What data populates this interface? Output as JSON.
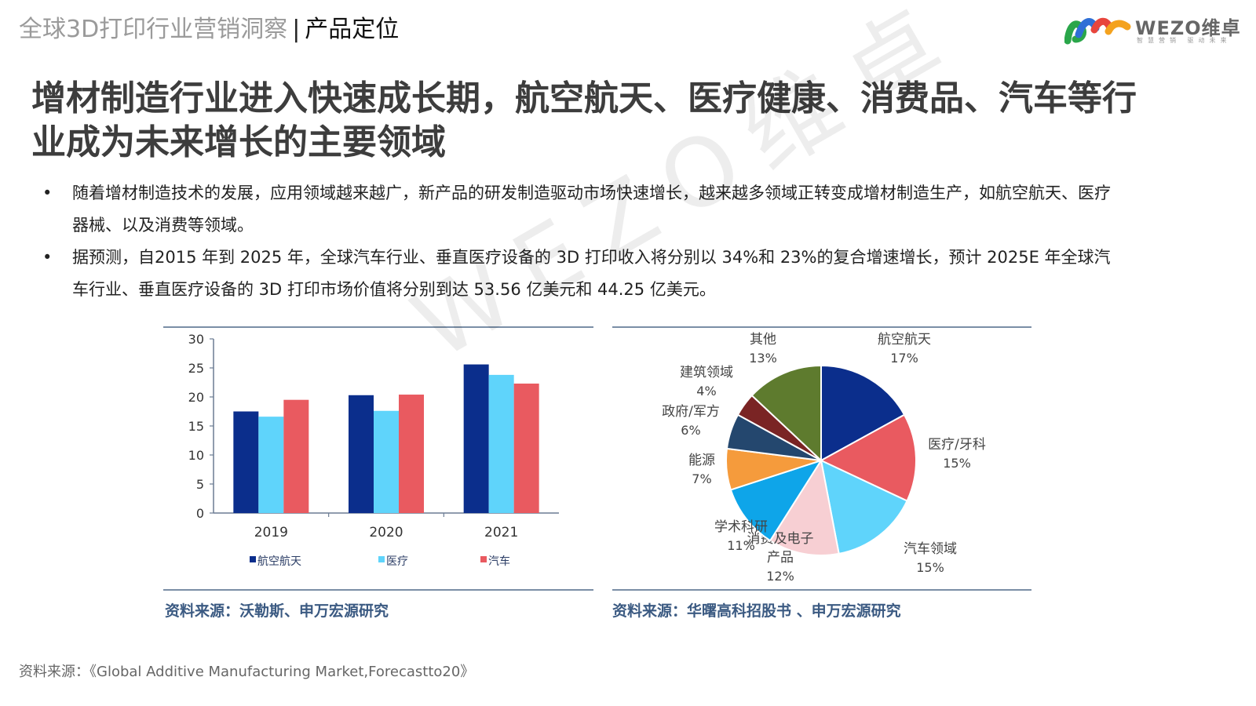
{
  "header": {
    "subtitle": "全球3D打印行业营销洞察",
    "separator": "|",
    "section": "产品定位"
  },
  "logo": {
    "brand": "WEZO维卓",
    "slogan": "智慧营销 驱动未来"
  },
  "title": "增材制造行业进入快速成长期，航空航天、医疗健康、消费品、汽车等行业成为未来增长的主要领域",
  "bullets": [
    "随着增材制造技术的发展，应用领域越来越广，新产品的研发制造驱动市场快速增长，越来越多领域正转变成增材制造生产，如航空航天、医疗器械、以及消费等领域。",
    "据预测，自2015 年到 2025 年，全球汽车行业、垂直医疗设备的 3D 打印收入将分别以 34%和 23%的复合增速增长，预计 2025E 年全球汽车行业、垂直医疗设备的 3D 打印市场价值将分别到达 53.56 亿美元和 44.25 亿美元。"
  ],
  "bullet_marker": "•",
  "watermark": "WEZO维卓",
  "charts": {
    "bar_source": "资料来源：沃勒斯、申万宏源研究",
    "pie_source": "资料来源：华曙高科招股书 、申万宏源研究"
  },
  "footer": "资料来源：《Global Additive Manufacturing Market,Forecastto20》",
  "chart_data": [
    {
      "type": "bar",
      "categories": [
        "2019",
        "2020",
        "2021"
      ],
      "series": [
        {
          "name": "航空航天",
          "values": [
            17.5,
            20.3,
            25.6
          ],
          "color": "#0b2e8c"
        },
        {
          "name": "医疗",
          "values": [
            16.6,
            17.6,
            23.8
          ],
          "color": "#5fd4fb"
        },
        {
          "name": "汽车",
          "values": [
            19.5,
            20.4,
            22.3
          ],
          "color": "#e95a60"
        }
      ],
      "ylim": [
        0,
        30
      ],
      "yticks": [
        0,
        5,
        10,
        15,
        20,
        25,
        30
      ],
      "legend_position": "bottom",
      "grid": false
    },
    {
      "type": "pie",
      "slices": [
        {
          "label": "航空航天",
          "value": 17,
          "display": "17%",
          "color": "#0b2e8c"
        },
        {
          "label": "医疗/牙科",
          "value": 15,
          "display": "15%",
          "color": "#e95a60"
        },
        {
          "label": "汽车领域",
          "value": 15,
          "display": "15%",
          "color": "#5fd4fb"
        },
        {
          "label": "消费及电子产品",
          "value": 12,
          "display": "12%",
          "color": "#f7cfd3"
        },
        {
          "label": "学术科研",
          "value": 11,
          "display": "11%",
          "color": "#0ea5e9"
        },
        {
          "label": "能源",
          "value": 7,
          "display": "7%",
          "color": "#f59b3c"
        },
        {
          "label": "政府/军方",
          "value": 6,
          "display": "6%",
          "color": "#24476e"
        },
        {
          "label": "建筑领域",
          "value": 4,
          "display": "4%",
          "color": "#7a2424"
        },
        {
          "label": "其他",
          "value": 13,
          "display": "13%",
          "color": "#5e7b2e"
        }
      ]
    }
  ]
}
